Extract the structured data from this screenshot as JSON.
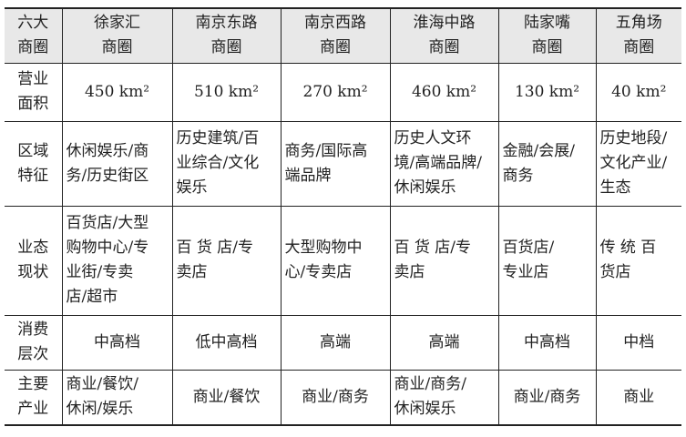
{
  "table": {
    "header": [
      [
        "六大",
        "商圈"
      ],
      [
        "徐家汇",
        "商圈"
      ],
      [
        "南京东路",
        "商圈"
      ],
      [
        "南京西路",
        "商圈"
      ],
      [
        "淮海中路",
        "商圈"
      ],
      [
        "陆家嘴",
        "商圈"
      ],
      [
        "五角场",
        "商圈"
      ]
    ],
    "rows": [
      {
        "label": [
          "营业",
          "面积"
        ],
        "cells": [
          [
            "450 km²"
          ],
          [
            "510 km²"
          ],
          [
            "270 km²"
          ],
          [
            "460 km²"
          ],
          [
            "130 km²"
          ],
          [
            "40 km²"
          ]
        ]
      },
      {
        "label": [
          "区域",
          "特征"
        ],
        "cells": [
          [
            "休闲娱乐/商",
            "务/历史街区"
          ],
          [
            "历史建筑/百",
            "业综合/文化",
            "娱乐"
          ],
          [
            "商务/国际高",
            "端品牌"
          ],
          [
            "历史人文环",
            "境/高端品牌/",
            "休闲娱乐"
          ],
          [
            "金融/会展/",
            "商务"
          ],
          [
            "历史地段/",
            "文化产业/",
            "生态"
          ]
        ]
      },
      {
        "label": [
          "业态",
          "现状"
        ],
        "cells": [
          [
            "百货店/大型",
            "购物中心/专",
            "业街/专卖",
            "店/超市"
          ],
          [
            "百 货 店/专",
            "卖店"
          ],
          [
            "大型购物中",
            "心/专卖店"
          ],
          [
            "百 货 店/专",
            "卖店"
          ],
          [
            "百货店/",
            "专业店"
          ],
          [
            "传 统 百",
            "货店"
          ]
        ]
      },
      {
        "label": [
          "消费",
          "层次"
        ],
        "cells": [
          [
            "中高档"
          ],
          [
            "低中高档"
          ],
          [
            "高端"
          ],
          [
            "高端"
          ],
          [
            "中高档"
          ],
          [
            "中档"
          ]
        ]
      },
      {
        "label": [
          "主要",
          "产业"
        ],
        "cells": [
          [
            "商业/餐饮/",
            "休闲/娱乐"
          ],
          [
            "商业/餐饮"
          ],
          [
            "商业/商务"
          ],
          [
            "商业/商务/",
            "休闲娱乐"
          ],
          [
            "商业/商务"
          ],
          [
            "商业"
          ]
        ]
      }
    ]
  }
}
